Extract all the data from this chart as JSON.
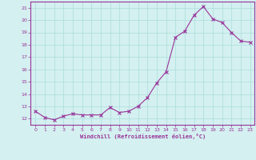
{
  "x": [
    0,
    1,
    2,
    3,
    4,
    5,
    6,
    7,
    8,
    9,
    10,
    11,
    12,
    13,
    14,
    15,
    16,
    17,
    18,
    19,
    20,
    21,
    22,
    23
  ],
  "y": [
    12.6,
    12.1,
    11.9,
    12.2,
    12.4,
    12.3,
    12.3,
    12.3,
    12.9,
    12.5,
    12.6,
    13.0,
    13.7,
    14.9,
    15.8,
    18.6,
    19.1,
    20.4,
    21.1,
    20.1,
    19.8,
    19.0,
    18.3,
    18.2
  ],
  "line_color": "#993399",
  "marker": "x",
  "bg_color": "#d4f0f0",
  "grid_color": "#aadddd",
  "xlabel": "Windchill (Refroidissement éolien,°C)",
  "xlabel_color": "#993399",
  "tick_color": "#993399",
  "ylim": [
    11.5,
    21.5
  ],
  "xlim": [
    -0.5,
    23.5
  ],
  "yticks": [
    12,
    13,
    14,
    15,
    16,
    17,
    18,
    19,
    20,
    21
  ],
  "xticks": [
    0,
    1,
    2,
    3,
    4,
    5,
    6,
    7,
    8,
    9,
    10,
    11,
    12,
    13,
    14,
    15,
    16,
    17,
    18,
    19,
    20,
    21,
    22,
    23
  ]
}
